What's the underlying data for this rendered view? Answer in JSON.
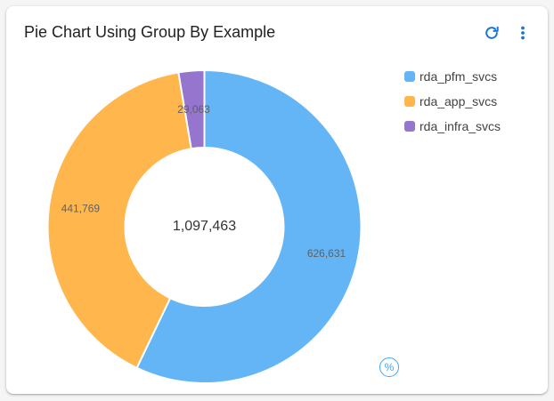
{
  "card": {
    "title": "Pie Chart Using Group By Example",
    "actions": [
      {
        "name": "refresh",
        "icon": "refresh-icon",
        "color": "#1976d2"
      },
      {
        "name": "more",
        "icon": "more-vert-icon",
        "color": "#1976d2"
      }
    ],
    "percent_toggle": {
      "label": "%",
      "icon": "percent-icon",
      "color": "#42a5f5"
    }
  },
  "chart_data": {
    "type": "pie",
    "variant": "donut",
    "title": "Pie Chart Using Group By Example",
    "categories": [
      "rda_pfm_svcs",
      "rda_app_svcs",
      "rda_infra_svcs"
    ],
    "values": [
      626631,
      441769,
      29063
    ],
    "value_labels": [
      "626,631",
      "441,769",
      "29,063"
    ],
    "colors": [
      "#64b5f6",
      "#ffb74d",
      "#9575cd"
    ],
    "center_label": "1,097,463",
    "total": 1097463,
    "legend_position": "right",
    "start_angle": "12 o'clock, clockwise"
  },
  "legend": {
    "items": [
      {
        "label": "rda_pfm_svcs",
        "color": "#64b5f6"
      },
      {
        "label": "rda_app_svcs",
        "color": "#ffb74d"
      },
      {
        "label": "rda_infra_svcs",
        "color": "#9575cd"
      }
    ]
  }
}
